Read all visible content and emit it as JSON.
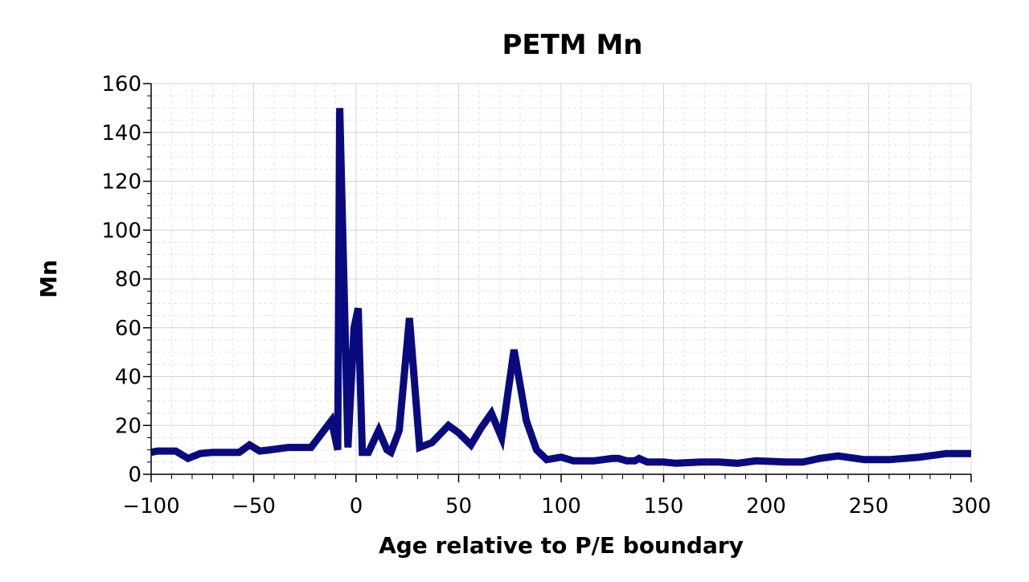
{
  "chart_data": {
    "type": "line",
    "title": "PETM Mn",
    "xlabel": "Age relative to P/E boundary",
    "ylabel": "Mn",
    "xlim": [
      -100,
      300
    ],
    "ylim": [
      0,
      160
    ],
    "grid": true,
    "xticks": [
      -100,
      -50,
      0,
      50,
      100,
      150,
      200,
      250,
      300
    ],
    "xtick_labels": [
      "−100",
      "−50",
      "0",
      "50",
      "100",
      "150",
      "200",
      "250",
      "300"
    ],
    "yticks": [
      0,
      20,
      40,
      60,
      80,
      100,
      120,
      140,
      160
    ],
    "ytick_labels": [
      "0",
      "20",
      "40",
      "60",
      "80",
      "100",
      "120",
      "140",
      "160"
    ],
    "series": [
      {
        "color": "#0a0a80",
        "x": [
          -100,
          -97,
          -93,
          -88,
          -82,
          -76,
          -70,
          -64,
          -57,
          -52,
          -47,
          -42,
          -33,
          -22,
          -12,
          -9,
          -8,
          -4,
          -1,
          1,
          3,
          6,
          11,
          15,
          17,
          21,
          26,
          31,
          37,
          45,
          50,
          56,
          61,
          66,
          71,
          77,
          83,
          88,
          93,
          100,
          106,
          116,
          125,
          128,
          132,
          136,
          138,
          142,
          150,
          156,
          168,
          177,
          186,
          195,
          210,
          218,
          226,
          235,
          248,
          260,
          275,
          288,
          300
        ],
        "y": [
          9,
          9.5,
          9.5,
          9.5,
          6.5,
          8.5,
          9,
          9,
          9,
          12,
          9.5,
          10,
          11,
          11,
          22,
          10,
          150,
          11,
          60,
          68,
          9,
          9,
          18,
          10,
          9,
          18,
          64,
          11,
          13,
          20,
          17,
          12,
          19,
          25,
          15,
          51,
          22,
          10,
          6,
          7,
          5.5,
          5.5,
          6.5,
          6.5,
          5.5,
          5.5,
          6.5,
          5,
          5,
          4.5,
          5,
          5,
          4.5,
          5.5,
          5,
          5,
          6.5,
          7.5,
          6,
          6,
          7,
          8.5,
          8.5
        ]
      }
    ]
  }
}
